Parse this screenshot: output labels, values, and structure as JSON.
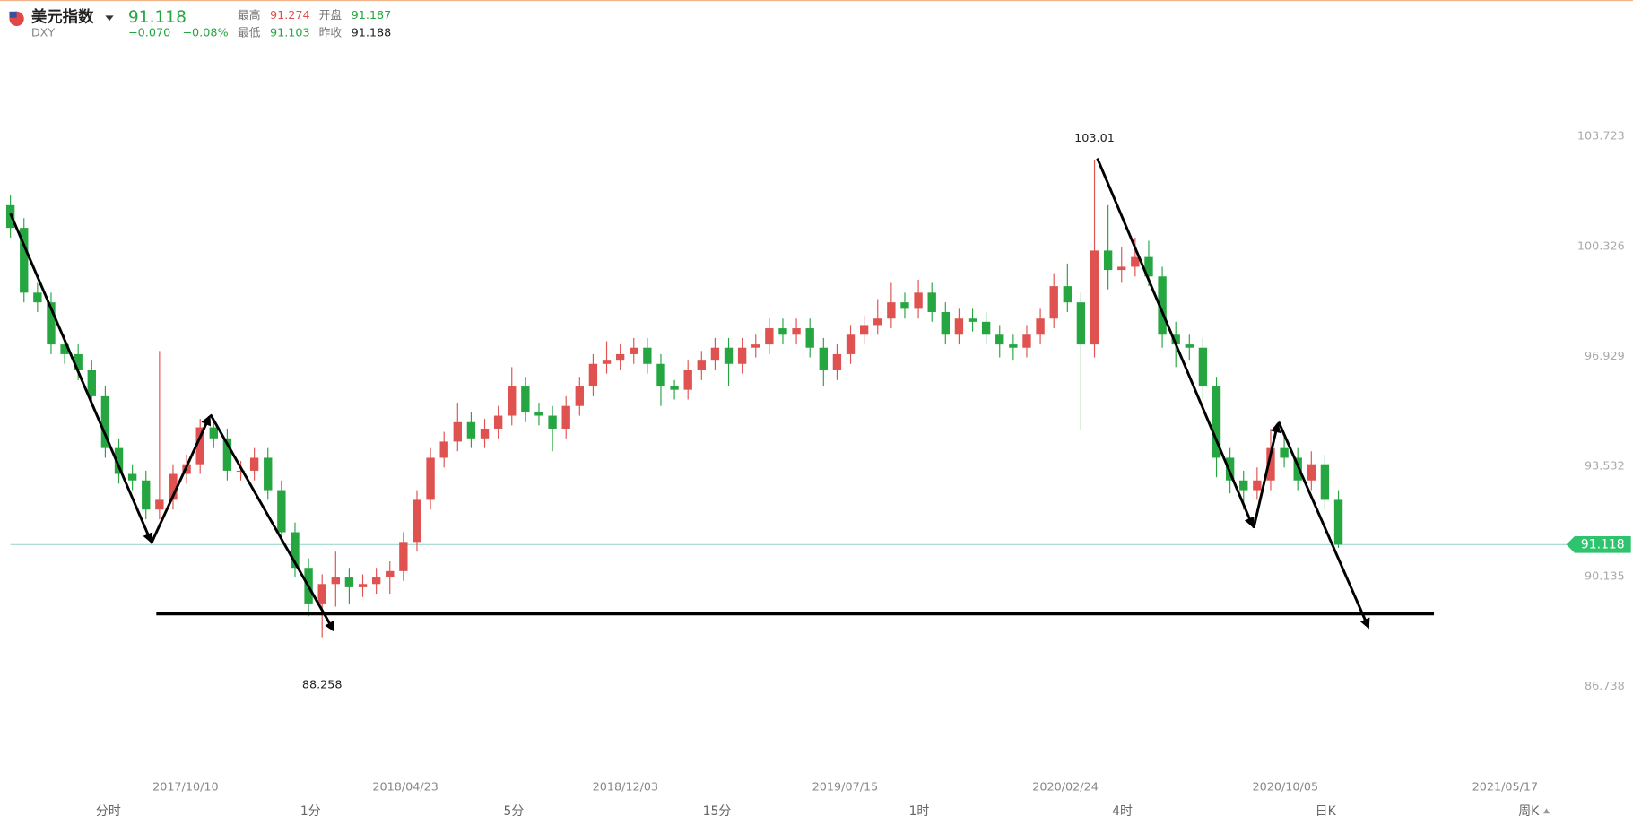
{
  "header": {
    "name": "美元指数",
    "code": "DXY",
    "price": "91.118",
    "change": "−0.070",
    "change_pct": "−0.08%",
    "stats": [
      {
        "label": "最高",
        "value": "91.274"
      },
      {
        "label": "开盘",
        "value": "91.187"
      },
      {
        "label": "最低",
        "value": "91.103"
      },
      {
        "label": "昨收",
        "value": "91.188"
      }
    ]
  },
  "toolbar": {
    "items": [
      "分时",
      "1分",
      "5分",
      "15分",
      "1时",
      "4时",
      "日K",
      "周K"
    ]
  },
  "chart_data": {
    "type": "candlestick",
    "up_color": "#e0524f",
    "down_color": "#25a641",
    "x": [
      0,
      1,
      2,
      3,
      4,
      5,
      6,
      7,
      8,
      9,
      10,
      11,
      12,
      13,
      14,
      15,
      16,
      17,
      18,
      19,
      20,
      21,
      22,
      23,
      24,
      25,
      26,
      27,
      28,
      29,
      30,
      31,
      32,
      33,
      34,
      35,
      36,
      37,
      38,
      39,
      40,
      41,
      42,
      43,
      44,
      45,
      46,
      47,
      48,
      49,
      50,
      51,
      52,
      53,
      54,
      55,
      56,
      57,
      58,
      59,
      60,
      61,
      62,
      63,
      64,
      65,
      66,
      67,
      68,
      69,
      70,
      71,
      72,
      73,
      74,
      75,
      76,
      77,
      78,
      79,
      80,
      81,
      82,
      83,
      84,
      85,
      86,
      87,
      88,
      89,
      90,
      91,
      92,
      93,
      94,
      95,
      96,
      97,
      98
    ],
    "open": [
      101.6,
      100.9,
      98.9,
      98.6,
      97.3,
      97.0,
      96.5,
      95.7,
      94.1,
      93.3,
      93.1,
      92.2,
      92.5,
      93.3,
      93.6,
      94.74,
      94.4,
      93.4,
      93.4,
      93.8,
      92.8,
      91.5,
      90.4,
      89.3,
      89.9,
      90.1,
      89.8,
      89.9,
      90.1,
      90.3,
      91.2,
      92.5,
      93.8,
      94.3,
      94.9,
      94.4,
      94.7,
      95.1,
      96.0,
      95.2,
      95.1,
      94.7,
      95.4,
      96.0,
      96.7,
      96.8,
      97.0,
      97.2,
      96.7,
      96.0,
      95.9,
      96.5,
      96.8,
      97.2,
      96.7,
      97.2,
      97.3,
      97.8,
      97.6,
      97.8,
      97.2,
      96.5,
      97.0,
      97.6,
      97.9,
      98.1,
      98.6,
      98.4,
      98.9,
      98.3,
      97.6,
      98.1,
      98.0,
      97.6,
      97.3,
      97.2,
      97.6,
      98.1,
      99.1,
      98.6,
      97.3,
      100.2,
      99.6,
      99.7,
      100.0,
      99.4,
      97.6,
      97.3,
      97.2,
      96.0,
      93.8,
      93.1,
      92.8,
      93.1,
      94.1,
      93.8,
      93.1,
      93.6,
      92.5
    ],
    "high": [
      101.9,
      101.2,
      99.2,
      98.9,
      97.6,
      97.3,
      96.8,
      96.0,
      94.4,
      93.6,
      93.4,
      97.1,
      93.6,
      93.9,
      95.0,
      95.0,
      94.7,
      93.7,
      94.1,
      94.1,
      93.1,
      91.8,
      90.7,
      90.2,
      90.9,
      90.4,
      90.2,
      90.4,
      90.6,
      91.5,
      92.8,
      94.1,
      94.6,
      95.5,
      95.2,
      95.0,
      95.4,
      96.6,
      96.3,
      95.5,
      95.4,
      95.7,
      96.3,
      97.0,
      97.4,
      97.3,
      97.5,
      97.5,
      97.0,
      96.2,
      96.8,
      97.1,
      97.5,
      97.5,
      97.5,
      97.6,
      98.1,
      98.1,
      98.1,
      98.1,
      97.5,
      97.3,
      97.9,
      98.2,
      98.7,
      99.2,
      98.9,
      99.3,
      99.2,
      98.6,
      98.4,
      98.4,
      98.3,
      97.9,
      97.6,
      97.9,
      98.4,
      99.5,
      99.8,
      98.9,
      103.01,
      101.6,
      100.3,
      100.6,
      100.5,
      99.7,
      98.0,
      97.6,
      97.5,
      96.3,
      94.1,
      93.4,
      93.5,
      94.7,
      94.6,
      94.1,
      94.0,
      93.9,
      92.8
    ],
    "low": [
      100.6,
      98.6,
      98.3,
      97.0,
      96.7,
      96.2,
      95.4,
      93.8,
      93.0,
      92.8,
      91.9,
      91.9,
      92.2,
      93.0,
      93.3,
      94.1,
      93.1,
      93.1,
      93.1,
      92.5,
      91.2,
      90.1,
      88.9,
      88.258,
      89.2,
      89.3,
      89.5,
      89.6,
      89.6,
      90.0,
      90.9,
      92.2,
      93.5,
      94.0,
      94.1,
      94.1,
      94.4,
      94.8,
      94.9,
      94.8,
      94.0,
      94.4,
      95.1,
      95.7,
      96.4,
      96.5,
      96.7,
      96.4,
      95.4,
      95.6,
      95.6,
      96.2,
      96.5,
      96.0,
      96.4,
      96.9,
      97.0,
      97.3,
      97.3,
      96.9,
      96.0,
      96.2,
      96.7,
      97.3,
      97.6,
      97.8,
      98.1,
      98.1,
      98.0,
      97.3,
      97.3,
      97.7,
      97.3,
      96.9,
      96.8,
      96.9,
      97.3,
      97.8,
      98.3,
      94.65,
      96.9,
      99.0,
      99.2,
      99.4,
      99.1,
      97.2,
      96.6,
      96.8,
      95.6,
      93.2,
      92.7,
      92.2,
      92.5,
      92.8,
      93.5,
      92.8,
      92.8,
      92.2,
      91.017
    ],
    "close": [
      100.9,
      98.9,
      98.6,
      97.3,
      97.0,
      96.5,
      95.7,
      94.1,
      93.3,
      93.1,
      92.2,
      92.5,
      93.3,
      93.6,
      94.74,
      94.4,
      93.4,
      93.4,
      93.8,
      92.8,
      91.5,
      90.4,
      89.3,
      89.9,
      90.1,
      89.8,
      89.9,
      90.1,
      90.3,
      91.2,
      92.5,
      93.8,
      94.3,
      94.9,
      94.4,
      94.7,
      95.1,
      96.0,
      95.2,
      95.1,
      94.7,
      95.4,
      96.0,
      96.7,
      96.8,
      97.0,
      97.2,
      96.7,
      96.0,
      95.9,
      96.5,
      96.8,
      97.2,
      96.7,
      97.2,
      97.3,
      97.8,
      97.6,
      97.8,
      97.2,
      96.5,
      97.0,
      97.6,
      97.9,
      98.1,
      98.6,
      98.4,
      98.9,
      98.3,
      97.6,
      98.1,
      98.0,
      97.6,
      97.3,
      97.2,
      97.6,
      98.1,
      99.1,
      98.6,
      97.3,
      100.2,
      99.6,
      99.7,
      100.0,
      99.4,
      97.6,
      97.3,
      97.2,
      96.0,
      93.8,
      93.1,
      92.8,
      93.1,
      94.1,
      93.8,
      93.1,
      93.6,
      92.5,
      91.118
    ],
    "last_price": 91.118,
    "annotations": [
      {
        "x": 80,
        "y": 103.01
      },
      {
        "x": 23,
        "y": 88.258
      }
    ],
    "xlim": [
      -0.77,
      114.2
    ],
    "xticks": [
      {
        "value": 12.92,
        "label": "2017/10/10"
      },
      {
        "value": 29.15,
        "label": "2018/04/23"
      },
      {
        "value": 45.38,
        "label": "2018/12/03"
      },
      {
        "value": 61.6,
        "label": "2019/07/15"
      },
      {
        "value": 77.85,
        "label": "2020/02/24"
      },
      {
        "value": 94.08,
        "label": "2020/10/05"
      },
      {
        "value": 110.3,
        "label": "2021/05/17"
      }
    ],
    "ylim": [
      84.13,
      106.33
    ],
    "yticks": [
      103.723,
      100.326,
      96.929,
      93.532,
      90.135,
      86.738
    ]
  }
}
